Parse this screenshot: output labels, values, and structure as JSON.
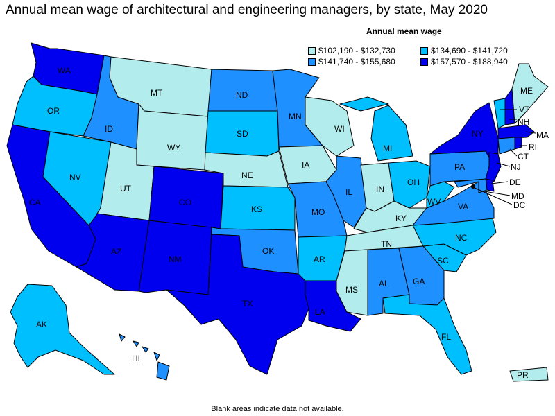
{
  "title": "Annual mean wage of architectural and engineering managers, by state, May 2020",
  "legend": {
    "title": "Annual mean wage",
    "items": [
      {
        "label": "$102,190 - $132,730",
        "color": "#b3ecec"
      },
      {
        "label": "$134,690 - $141,720",
        "color": "#00bfff"
      },
      {
        "label": "$141,740 - $155,680",
        "color": "#1e90ff"
      },
      {
        "label": "$157,570 - $188,940",
        "color": "#0000ee"
      }
    ]
  },
  "footnote": "Blank areas indicate data not available.",
  "colors": {
    "tier1": "#b3ecec",
    "tier2": "#00bfff",
    "tier3": "#1e90ff",
    "tier4": "#0000ee"
  },
  "states": {
    "WA": "WA",
    "OR": "OR",
    "CA": "CA",
    "NV": "NV",
    "ID": "ID",
    "MT": "MT",
    "WY": "WY",
    "UT": "UT",
    "AZ": "AZ",
    "CO": "CO",
    "NM": "NM",
    "ND": "ND",
    "SD": "SD",
    "NE": "NE",
    "KS": "KS",
    "OK": "OK",
    "TX": "TX",
    "MN": "MN",
    "IA": "IA",
    "MO": "MO",
    "AR": "AR",
    "LA": "LA",
    "WI": "WI",
    "IL": "IL",
    "MI": "MI",
    "IN": "IN",
    "OH": "OH",
    "KY": "KY",
    "TN": "TN",
    "MS": "MS",
    "AL": "AL",
    "GA": "GA",
    "FL": "FL",
    "SC": "SC",
    "NC": "NC",
    "VA": "VA",
    "WV": "WV",
    "PA": "PA",
    "NY": "NY",
    "ME": "ME",
    "VT": "VT",
    "NH": "NH",
    "MA": "MA",
    "RI": "RI",
    "CT": "CT",
    "NJ": "NJ",
    "DE": "DE",
    "MD": "MD",
    "DC": "DC",
    "AK": "AK",
    "HI": "HI",
    "PR": "PR"
  }
}
